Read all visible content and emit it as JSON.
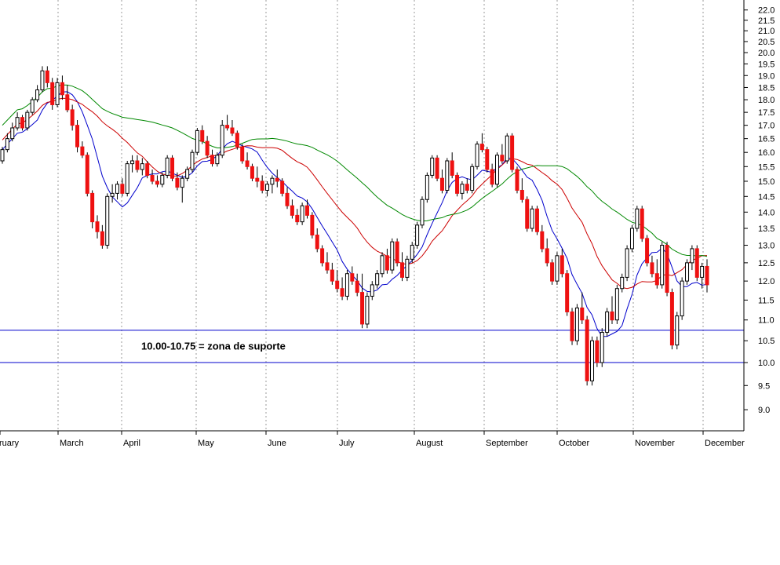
{
  "chart_data": {
    "type": "candlestick",
    "title": "",
    "xlabel": "",
    "ylabel": "",
    "ylim": [
      8.6,
      22.3
    ],
    "grid": true,
    "y_ticks": [
      9.0,
      9.5,
      10.0,
      10.5,
      11.0,
      11.5,
      12.0,
      12.5,
      13.0,
      13.5,
      14.0,
      14.5,
      15.0,
      15.5,
      16.0,
      16.5,
      17.0,
      17.5,
      18.0,
      18.5,
      19.0,
      19.5,
      20.0,
      20.5,
      21.0,
      21.5,
      22.0
    ],
    "months": [
      "February",
      "March",
      "April",
      "May",
      "June",
      "July",
      "August",
      "September",
      "October",
      "November",
      "December"
    ],
    "horizontal_lines": [
      10.75,
      10.0
    ],
    "annotation": "10.00-10.75 = zona de suporte",
    "colors": {
      "up": "#ffffff",
      "down": "#ee1111",
      "ma_short": "#0000cc",
      "ma_mid": "#cc0000",
      "ma_long": "#008800",
      "support": "#0000cc",
      "grid": "#999999"
    },
    "candles": [
      [
        15.7,
        16.2,
        15.6,
        16.1
      ],
      [
        16.1,
        16.7,
        16.0,
        16.5
      ],
      [
        16.5,
        17.1,
        16.4,
        16.9
      ],
      [
        16.9,
        17.5,
        16.8,
        17.3
      ],
      [
        17.3,
        17.4,
        16.8,
        16.9
      ],
      [
        16.9,
        17.6,
        16.8,
        17.5
      ],
      [
        17.5,
        18.1,
        17.4,
        18.0
      ],
      [
        18.0,
        18.6,
        17.9,
        18.4
      ],
      [
        18.4,
        19.4,
        18.3,
        19.2
      ],
      [
        19.2,
        19.4,
        18.5,
        18.7
      ],
      [
        18.7,
        18.9,
        17.6,
        17.8
      ],
      [
        17.8,
        18.9,
        17.7,
        18.7
      ],
      [
        18.7,
        19.0,
        18.0,
        18.2
      ],
      [
        18.2,
        18.6,
        17.5,
        17.6
      ],
      [
        17.6,
        17.8,
        16.8,
        17.0
      ],
      [
        17.0,
        17.2,
        16.0,
        16.2
      ],
      [
        16.2,
        16.4,
        15.8,
        15.9
      ],
      [
        15.9,
        16.0,
        14.5,
        14.6
      ],
      [
        14.6,
        14.7,
        13.5,
        13.7
      ],
      [
        13.7,
        13.9,
        13.2,
        13.4
      ],
      [
        13.4,
        13.6,
        12.9,
        13.0
      ],
      [
        13.0,
        14.6,
        12.9,
        14.5
      ],
      [
        14.5,
        14.9,
        14.3,
        14.6
      ],
      [
        14.6,
        15.0,
        14.4,
        14.9
      ],
      [
        14.9,
        15.1,
        14.5,
        14.6
      ],
      [
        14.6,
        15.7,
        14.5,
        15.6
      ],
      [
        15.6,
        15.9,
        15.3,
        15.7
      ],
      [
        15.7,
        15.9,
        15.3,
        15.4
      ],
      [
        15.4,
        15.8,
        15.2,
        15.6
      ],
      [
        15.6,
        15.7,
        15.1,
        15.2
      ],
      [
        15.2,
        15.4,
        14.9,
        15.0
      ],
      [
        15.0,
        15.2,
        14.8,
        14.9
      ],
      [
        14.9,
        15.3,
        14.8,
        15.2
      ],
      [
        15.2,
        15.9,
        15.1,
        15.8
      ],
      [
        15.8,
        15.9,
        15.0,
        15.1
      ],
      [
        15.1,
        15.3,
        14.7,
        14.8
      ],
      [
        14.8,
        15.2,
        14.3,
        15.1
      ],
      [
        15.1,
        15.5,
        15.0,
        15.4
      ],
      [
        15.4,
        16.1,
        15.3,
        16.0
      ],
      [
        16.0,
        16.9,
        15.9,
        16.8
      ],
      [
        16.8,
        17.0,
        16.3,
        16.4
      ],
      [
        16.4,
        16.6,
        15.8,
        15.9
      ],
      [
        15.9,
        16.1,
        15.5,
        15.6
      ],
      [
        15.6,
        16.0,
        15.5,
        15.9
      ],
      [
        15.9,
        17.2,
        15.8,
        17.0
      ],
      [
        17.0,
        17.4,
        16.8,
        16.9
      ],
      [
        16.9,
        17.2,
        16.6,
        16.7
      ],
      [
        16.7,
        16.8,
        16.1,
        16.2
      ],
      [
        16.2,
        16.3,
        15.6,
        15.7
      ],
      [
        15.7,
        16.0,
        15.4,
        15.5
      ],
      [
        15.5,
        15.6,
        15.0,
        15.1
      ],
      [
        15.1,
        15.5,
        14.8,
        15.0
      ],
      [
        15.0,
        15.2,
        14.6,
        14.7
      ],
      [
        14.7,
        15.0,
        14.5,
        14.9
      ],
      [
        14.9,
        15.2,
        14.6,
        15.1
      ],
      [
        15.1,
        15.4,
        14.8,
        15.0
      ],
      [
        15.0,
        15.1,
        14.5,
        14.6
      ],
      [
        14.6,
        14.8,
        14.1,
        14.2
      ],
      [
        14.2,
        14.4,
        13.8,
        13.9
      ],
      [
        13.9,
        14.1,
        13.6,
        13.7
      ],
      [
        13.7,
        14.3,
        13.6,
        14.2
      ],
      [
        14.2,
        14.4,
        13.8,
        13.9
      ],
      [
        13.9,
        14.0,
        13.2,
        13.3
      ],
      [
        13.3,
        13.5,
        12.8,
        12.9
      ],
      [
        12.9,
        13.0,
        12.4,
        12.5
      ],
      [
        12.5,
        12.8,
        12.2,
        12.3
      ],
      [
        12.3,
        12.5,
        11.9,
        12.0
      ],
      [
        12.0,
        12.3,
        11.7,
        11.8
      ],
      [
        11.8,
        12.1,
        11.5,
        11.6
      ],
      [
        11.6,
        12.3,
        11.5,
        12.2
      ],
      [
        12.2,
        12.4,
        11.9,
        12.0
      ],
      [
        12.0,
        12.2,
        11.6,
        11.7
      ],
      [
        11.7,
        12.2,
        10.8,
        10.9
      ],
      [
        10.9,
        11.7,
        10.8,
        11.6
      ],
      [
        11.6,
        12.0,
        11.5,
        11.9
      ],
      [
        11.9,
        12.3,
        11.8,
        12.2
      ],
      [
        12.2,
        12.8,
        12.1,
        12.7
      ],
      [
        12.7,
        12.9,
        12.2,
        12.3
      ],
      [
        12.3,
        13.2,
        12.2,
        13.1
      ],
      [
        13.1,
        13.2,
        12.4,
        12.5
      ],
      [
        12.5,
        12.8,
        12.0,
        12.1
      ],
      [
        12.1,
        12.7,
        12.0,
        12.6
      ],
      [
        12.6,
        13.1,
        12.5,
        13.0
      ],
      [
        13.0,
        13.7,
        12.9,
        13.6
      ],
      [
        13.6,
        14.5,
        13.5,
        14.4
      ],
      [
        14.4,
        15.3,
        14.3,
        15.2
      ],
      [
        15.2,
        15.9,
        15.1,
        15.8
      ],
      [
        15.8,
        15.9,
        15.0,
        15.1
      ],
      [
        15.1,
        15.4,
        14.6,
        14.7
      ],
      [
        14.7,
        15.8,
        14.6,
        15.7
      ],
      [
        15.7,
        16.0,
        15.1,
        15.2
      ],
      [
        15.2,
        15.3,
        14.5,
        14.6
      ],
      [
        14.6,
        15.0,
        14.4,
        14.9
      ],
      [
        14.9,
        15.1,
        14.6,
        14.7
      ],
      [
        14.7,
        15.6,
        14.6,
        15.5
      ],
      [
        15.5,
        16.4,
        15.4,
        16.3
      ],
      [
        16.3,
        16.7,
        16.0,
        16.1
      ],
      [
        16.1,
        16.2,
        15.3,
        15.4
      ],
      [
        15.4,
        15.6,
        14.8,
        14.9
      ],
      [
        14.9,
        16.0,
        14.8,
        15.9
      ],
      [
        15.9,
        16.3,
        15.6,
        15.7
      ],
      [
        15.7,
        16.7,
        15.6,
        16.6
      ],
      [
        16.6,
        16.7,
        15.3,
        15.4
      ],
      [
        15.4,
        15.5,
        14.6,
        14.7
      ],
      [
        14.7,
        15.1,
        14.3,
        14.4
      ],
      [
        14.4,
        14.5,
        13.4,
        13.5
      ],
      [
        13.5,
        14.2,
        13.4,
        14.1
      ],
      [
        14.1,
        14.2,
        13.3,
        13.4
      ],
      [
        13.4,
        13.6,
        12.8,
        12.9
      ],
      [
        12.9,
        13.2,
        12.4,
        12.5
      ],
      [
        12.5,
        12.6,
        11.9,
        12.0
      ],
      [
        12.0,
        12.8,
        11.9,
        12.7
      ],
      [
        12.7,
        12.9,
        12.1,
        12.2
      ],
      [
        12.2,
        12.3,
        11.1,
        11.2
      ],
      [
        11.2,
        11.3,
        10.4,
        10.5
      ],
      [
        10.5,
        11.4,
        10.4,
        11.3
      ],
      [
        11.3,
        11.7,
        10.9,
        11.0
      ],
      [
        11.0,
        11.1,
        9.5,
        9.6
      ],
      [
        9.6,
        10.6,
        9.5,
        10.5
      ],
      [
        10.5,
        10.6,
        9.9,
        10.0
      ],
      [
        10.0,
        10.8,
        9.9,
        10.7
      ],
      [
        10.7,
        11.3,
        10.6,
        11.2
      ],
      [
        11.2,
        11.6,
        10.9,
        11.0
      ],
      [
        11.0,
        11.9,
        10.9,
        11.8
      ],
      [
        11.8,
        12.2,
        11.7,
        12.1
      ],
      [
        12.1,
        13.0,
        12.0,
        12.9
      ],
      [
        12.9,
        13.6,
        12.8,
        13.5
      ],
      [
        13.5,
        14.2,
        13.4,
        14.1
      ],
      [
        14.1,
        14.2,
        13.1,
        13.2
      ],
      [
        13.2,
        13.3,
        12.4,
        12.5
      ],
      [
        12.5,
        12.7,
        12.1,
        12.2
      ],
      [
        12.2,
        12.6,
        11.8,
        11.9
      ],
      [
        11.9,
        13.1,
        11.8,
        13.0
      ],
      [
        13.0,
        13.1,
        11.6,
        11.7
      ],
      [
        11.7,
        11.8,
        10.3,
        10.4
      ],
      [
        10.4,
        11.2,
        10.3,
        11.1
      ],
      [
        11.1,
        12.1,
        11.0,
        12.0
      ],
      [
        12.0,
        12.6,
        11.9,
        12.5
      ],
      [
        12.5,
        13.0,
        12.3,
        12.9
      ],
      [
        12.9,
        13.0,
        12.0,
        12.1
      ],
      [
        12.1,
        12.5,
        11.8,
        12.4
      ],
      [
        12.4,
        12.6,
        11.7,
        11.9
      ]
    ]
  }
}
